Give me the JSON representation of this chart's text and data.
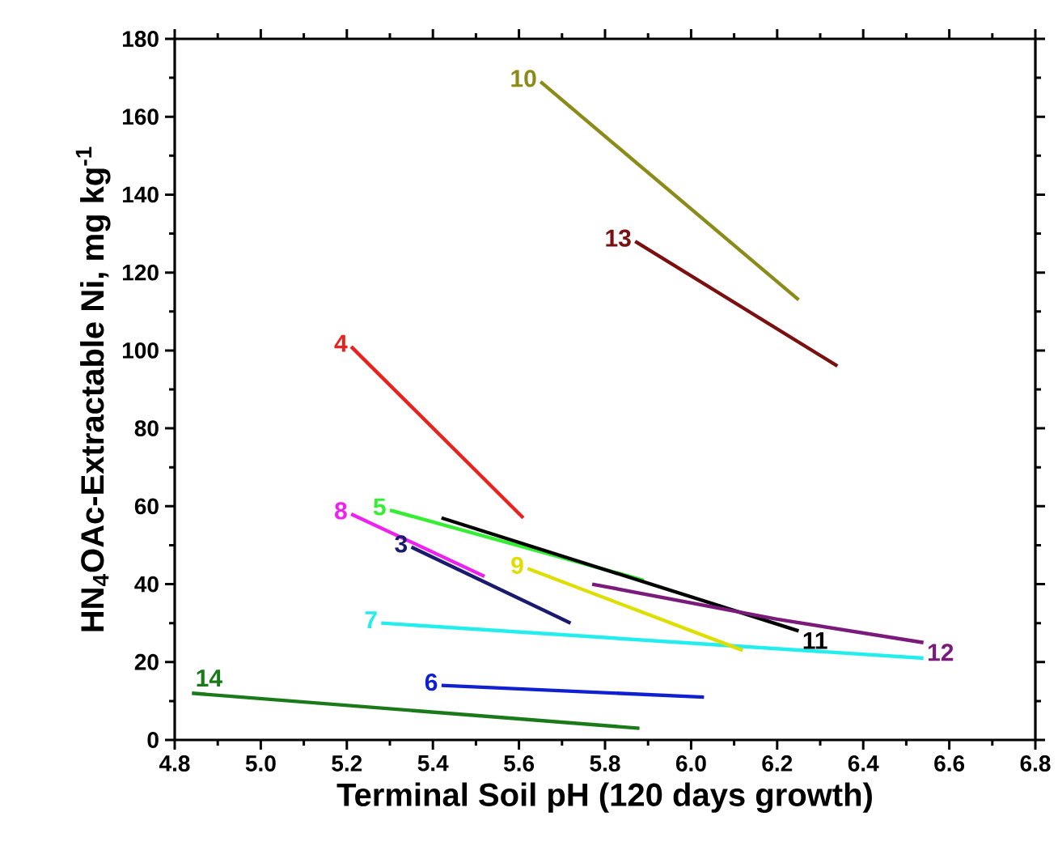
{
  "chart_data": {
    "type": "line",
    "xlabel": "Terminal Soil pH (120 days growth)",
    "ylabel": "HN$_{4}$OAc-Extractable Ni, mg kg$^{-1}$",
    "xlim": [
      4.8,
      6.8
    ],
    "xticks": [
      4.8,
      {
        "value": 5.0,
        "label": "5.0"
      },
      5.2,
      5.4,
      5.6,
      5.8,
      {
        "value": 6.0,
        "label": "6.0"
      },
      6.2,
      6.4,
      6.6,
      6.8
    ],
    "ylim": [
      0,
      180
    ],
    "yticks": [
      0,
      20,
      40,
      60,
      80,
      100,
      120,
      140,
      160,
      180
    ],
    "grid": false,
    "marker": "none",
    "line_style": "solid",
    "series": [
      {
        "color": "#1a1a6e",
        "x": [
          5.35,
          5.72
        ],
        "values": [
          49.5,
          30
        ]
      },
      {
        "color": "#e8231e",
        "x": [
          5.21,
          5.61
        ],
        "values": [
          101,
          57
        ]
      },
      {
        "color": "#33ee33",
        "x": [
          5.3,
          5.89
        ],
        "values": [
          59,
          41
        ]
      },
      {
        "color": "#1020d0",
        "x": [
          5.42,
          6.03
        ],
        "values": [
          14,
          11
        ]
      },
      {
        "color": "#22eeee",
        "x": [
          5.28,
          6.54
        ],
        "values": [
          30,
          21
        ]
      },
      {
        "color": "#ee22ee",
        "x": [
          5.21,
          5.52
        ],
        "values": [
          58,
          42
        ]
      },
      {
        "color": "#dede00",
        "x": [
          5.62,
          6.12
        ],
        "values": [
          44,
          23
        ]
      },
      {
        "color": "#8b8b1a",
        "x": [
          5.65,
          6.25
        ],
        "values": [
          169,
          113
        ]
      },
      {
        "color": "#000000",
        "x": [
          5.42,
          6.25
        ],
        "values": [
          57,
          28
        ]
      },
      {
        "color": "#7a1a7a",
        "x": [
          5.77,
          6.2,
          6.54
        ],
        "values": [
          40,
          31,
          25
        ]
      },
      {
        "color": "#7a1010",
        "x": [
          5.87,
          6.34
        ],
        "values": [
          128,
          96
        ]
      },
      {
        "color": "#1a7a1a",
        "x": [
          4.84,
          5.88
        ],
        "values": [
          12,
          3
        ]
      }
    ],
    "annotations": [
      {
        "text": "3",
        "x": 5.35,
        "y": 49.5
      },
      {
        "text": "4",
        "x": 5.21,
        "y": 101
      },
      {
        "text": "5",
        "x": 5.3,
        "y": 59
      },
      {
        "text": "6",
        "x": 5.42,
        "y": 14
      },
      {
        "text": "7",
        "x": 5.28,
        "y": 30
      },
      {
        "text": "8",
        "x": 5.21,
        "y": 58
      },
      {
        "text": "9",
        "x": 5.62,
        "y": 44
      },
      {
        "text": "10",
        "x": 5.65,
        "y": 169
      },
      {
        "text": "11",
        "x": 6.25,
        "y": 28
      },
      {
        "text": "12",
        "x": 6.54,
        "y": 25
      },
      {
        "text": "13",
        "x": 5.87,
        "y": 128
      },
      {
        "text": "14",
        "x": 4.84,
        "y": 12
      }
    ]
  }
}
